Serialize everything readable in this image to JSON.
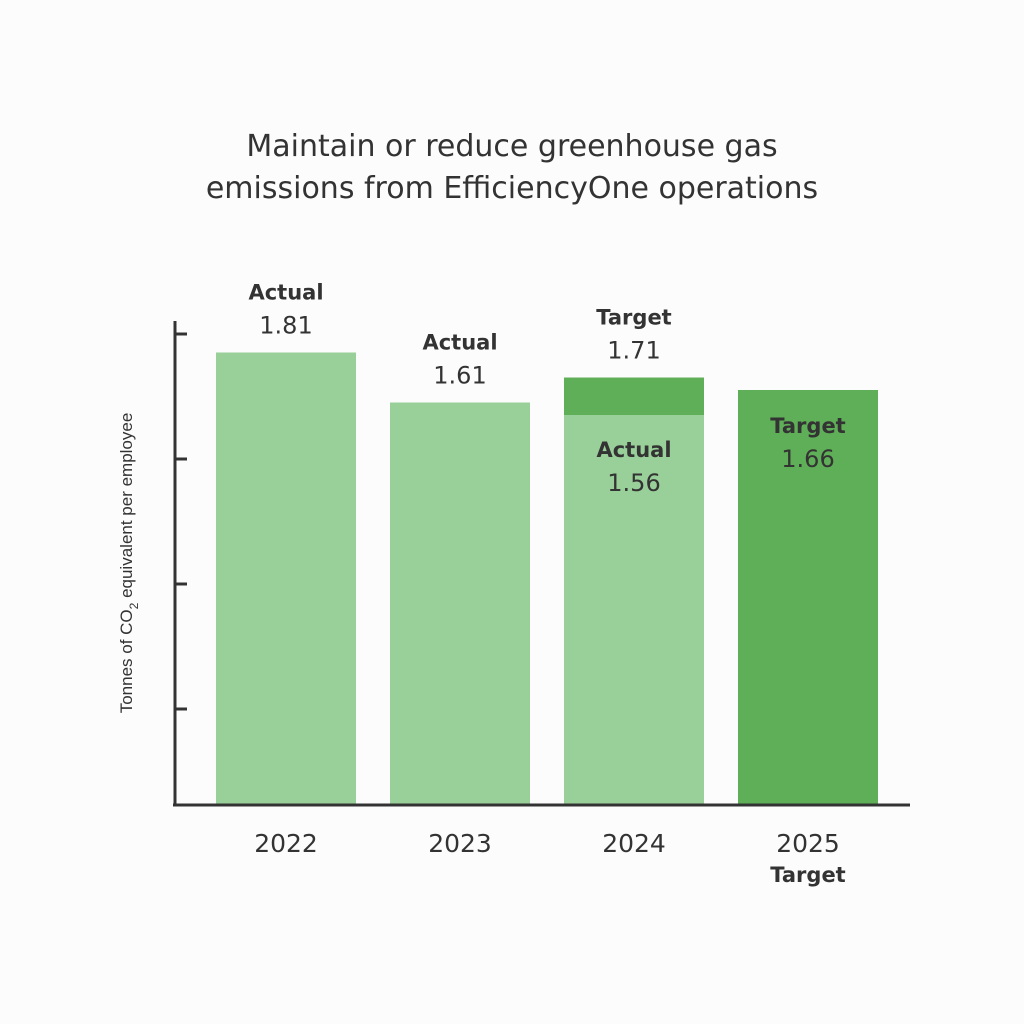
{
  "chart_data": {
    "type": "bar",
    "title_lines": [
      "Maintain or reduce greenhouse gas",
      "emissions from EfficiencyOne operations"
    ],
    "ylabel": {
      "before": "Tonnes of CO",
      "subscript": "2",
      "after": " equivalent per employee"
    },
    "categories": [
      "2022",
      "2023",
      "2024",
      "2025"
    ],
    "category_sublabels": [
      "",
      "",
      "",
      "Target"
    ],
    "series": [
      {
        "name": "Actual",
        "values": [
          1.81,
          1.61,
          1.56,
          null
        ]
      },
      {
        "name": "Target",
        "values": [
          null,
          null,
          1.71,
          1.66
        ]
      }
    ],
    "bar_labels": [
      [
        {
          "tag": "Actual",
          "value": "1.81"
        }
      ],
      [
        {
          "tag": "Actual",
          "value": "1.61"
        }
      ],
      [
        {
          "tag": "Target",
          "value": "1.71"
        },
        {
          "tag": "Actual",
          "value": "1.56"
        }
      ],
      [
        {
          "tag": "Target",
          "value": "1.66"
        }
      ]
    ],
    "grid": false,
    "legend": "none",
    "colors": {
      "actual": "#99cf98",
      "target": "#5faf58",
      "axis": "#333333",
      "text": "#333333"
    }
  }
}
